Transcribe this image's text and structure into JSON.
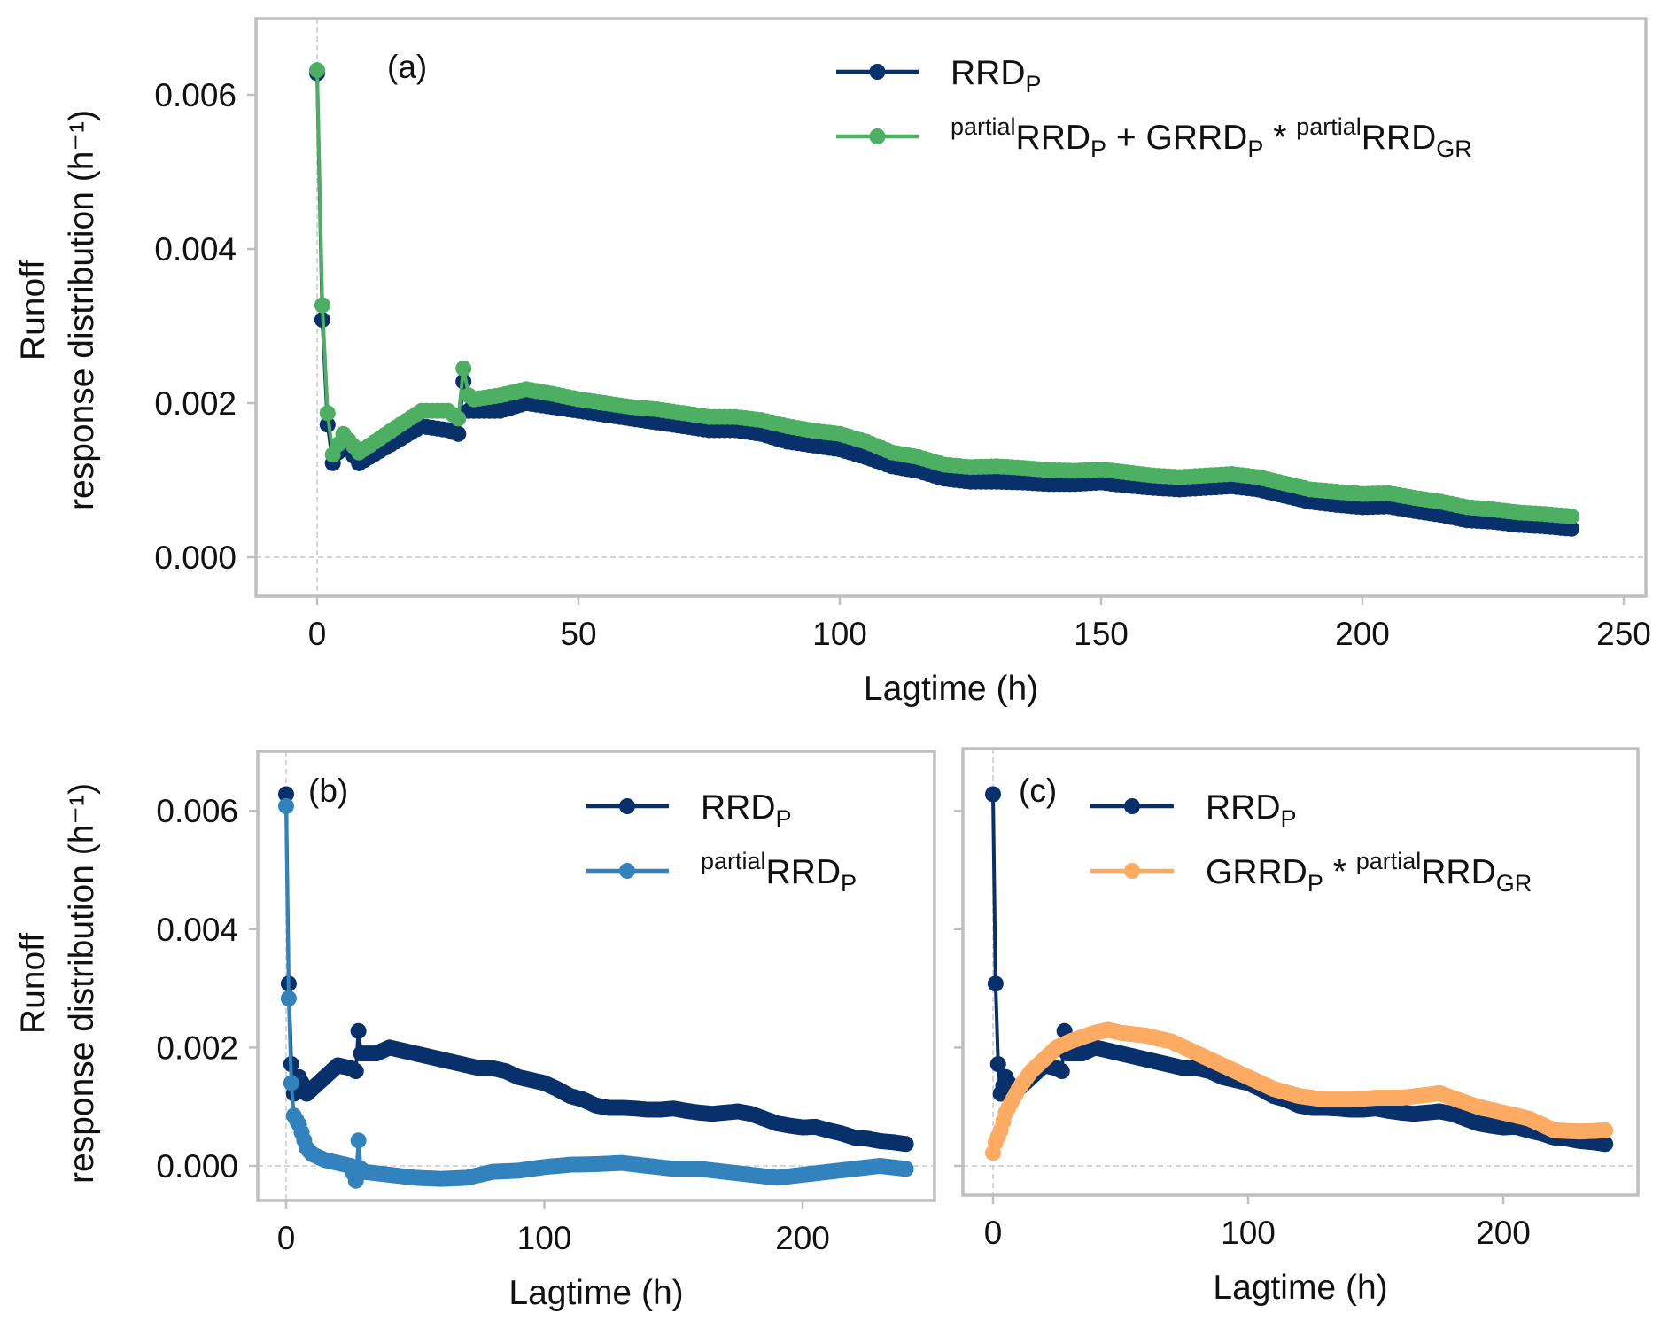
{
  "chart_data": [
    {
      "id": "a",
      "type": "line",
      "panel_label": "(a)",
      "xlabel": "Lagtime (h)",
      "ylabel_lines": [
        "Runoff",
        "response distribution (h⁻¹)"
      ],
      "xlim": [
        -12,
        262
      ],
      "ylim": [
        -0.0005,
        0.007
      ],
      "xticks": [
        0,
        50,
        100,
        150,
        200,
        250
      ],
      "yticks": [
        0.0,
        0.002,
        0.004,
        0.006
      ],
      "ytick_labels": [
        "0.000",
        "0.002",
        "0.004",
        "0.006"
      ],
      "legend_position": "top-right",
      "series": [
        {
          "name": "RRD_P",
          "color": "#08306b",
          "legend": [
            {
              "t": "RRD",
              "s": ""
            },
            {
              "t": "P",
              "s": "sub"
            }
          ],
          "x": [
            0,
            1,
            2,
            3,
            5,
            8,
            10,
            15,
            20,
            25,
            27,
            28,
            29,
            30,
            35,
            40,
            45,
            50,
            55,
            60,
            65,
            70,
            75,
            80,
            85,
            90,
            95,
            100,
            105,
            110,
            115,
            120,
            125,
            130,
            135,
            140,
            145,
            150,
            155,
            160,
            165,
            170,
            175,
            180,
            185,
            190,
            195,
            200,
            205,
            210,
            215,
            220,
            225,
            230,
            235,
            240
          ],
          "y": [
            0.00628,
            0.00308,
            0.00172,
            0.00122,
            0.0015,
            0.00122,
            0.0013,
            0.0015,
            0.0017,
            0.00165,
            0.0016,
            0.00228,
            0.0019,
            0.0019,
            0.0019,
            0.002,
            0.00195,
            0.0019,
            0.00185,
            0.0018,
            0.00175,
            0.0017,
            0.00165,
            0.00165,
            0.0016,
            0.0015,
            0.00145,
            0.0014,
            0.0013,
            0.00118,
            0.00112,
            0.00102,
            0.00098,
            0.00098,
            0.00097,
            0.00095,
            0.00095,
            0.00097,
            0.00093,
            0.0009,
            0.00088,
            0.0009,
            0.00092,
            0.00088,
            0.0008,
            0.00072,
            0.00068,
            0.00065,
            0.00066,
            0.0006,
            0.00055,
            0.00048,
            0.00046,
            0.00042,
            0.0004,
            0.00037
          ]
        },
        {
          "name": "partialRRD_P + GRRD_P * partialRRD_GR",
          "color": "#4caf62",
          "legend": [
            {
              "t": "partial",
              "s": "sup"
            },
            {
              "t": "RRD",
              "s": ""
            },
            {
              "t": "P",
              "s": "sub"
            },
            {
              "t": " + GRRD",
              "s": ""
            },
            {
              "t": "P",
              "s": "sub"
            },
            {
              "t": " * ",
              "s": ""
            },
            {
              "t": "partial",
              "s": "sup"
            },
            {
              "t": "RRD",
              "s": ""
            },
            {
              "t": "GR",
              "s": "sub"
            }
          ],
          "x": [
            0,
            1,
            2,
            3,
            5,
            8,
            10,
            15,
            20,
            25,
            27,
            28,
            29,
            30,
            35,
            40,
            45,
            50,
            55,
            60,
            65,
            70,
            75,
            80,
            85,
            90,
            95,
            100,
            105,
            110,
            115,
            120,
            125,
            130,
            135,
            140,
            145,
            150,
            155,
            160,
            165,
            170,
            175,
            180,
            185,
            190,
            195,
            200,
            205,
            210,
            215,
            220,
            225,
            230,
            235,
            240
          ],
          "y": [
            0.00632,
            0.00327,
            0.00187,
            0.00133,
            0.0016,
            0.00136,
            0.00145,
            0.00168,
            0.0019,
            0.0019,
            0.0018,
            0.00245,
            0.0021,
            0.00205,
            0.0021,
            0.00218,
            0.00212,
            0.00205,
            0.002,
            0.00195,
            0.00192,
            0.00187,
            0.00182,
            0.00182,
            0.00178,
            0.0017,
            0.00164,
            0.0016,
            0.0015,
            0.00136,
            0.0013,
            0.0012,
            0.00117,
            0.00118,
            0.00116,
            0.00113,
            0.00112,
            0.00114,
            0.0011,
            0.00106,
            0.00104,
            0.00106,
            0.00108,
            0.00104,
            0.00096,
            0.00088,
            0.00085,
            0.00082,
            0.00083,
            0.00077,
            0.00072,
            0.00065,
            0.00062,
            0.00058,
            0.00056,
            0.00053
          ]
        }
      ]
    },
    {
      "id": "b",
      "type": "line",
      "panel_label": "(b)",
      "xlabel": "Lagtime (h)",
      "ylabel_lines": [
        "Runoff",
        "response distribution (h⁻¹)"
      ],
      "xlim": [
        -12,
        252
      ],
      "ylim": [
        -0.0006,
        0.007
      ],
      "xticks": [
        0,
        100,
        200
      ],
      "yticks": [
        0.0,
        0.002,
        0.004,
        0.006
      ],
      "ytick_labels": [
        "0.000",
        "0.002",
        "0.004",
        "0.006"
      ],
      "legend_position": "top-right",
      "series": [
        {
          "name": "RRD_P",
          "color": "#08306b",
          "legend": [
            {
              "t": "RRD",
              "s": ""
            },
            {
              "t": "P",
              "s": "sub"
            }
          ],
          "x": [
            0,
            1,
            2,
            3,
            5,
            8,
            10,
            15,
            20,
            25,
            27,
            28,
            29,
            30,
            35,
            40,
            45,
            50,
            55,
            60,
            65,
            70,
            75,
            80,
            85,
            90,
            95,
            100,
            105,
            110,
            115,
            120,
            125,
            130,
            135,
            140,
            145,
            150,
            155,
            160,
            165,
            170,
            175,
            180,
            185,
            190,
            195,
            200,
            205,
            210,
            215,
            220,
            225,
            230,
            235,
            240
          ],
          "y": [
            0.00628,
            0.00308,
            0.00172,
            0.00122,
            0.0015,
            0.00122,
            0.0013,
            0.0015,
            0.0017,
            0.00165,
            0.0016,
            0.00228,
            0.0019,
            0.0019,
            0.0019,
            0.002,
            0.00195,
            0.0019,
            0.00185,
            0.0018,
            0.00175,
            0.0017,
            0.00165,
            0.00165,
            0.0016,
            0.0015,
            0.00145,
            0.0014,
            0.0013,
            0.00118,
            0.00112,
            0.00102,
            0.00098,
            0.00098,
            0.00097,
            0.00095,
            0.00095,
            0.00097,
            0.00093,
            0.0009,
            0.00088,
            0.0009,
            0.00092,
            0.00088,
            0.0008,
            0.00072,
            0.00068,
            0.00065,
            0.00066,
            0.0006,
            0.00055,
            0.00048,
            0.00046,
            0.00042,
            0.0004,
            0.00037
          ]
        },
        {
          "name": "partialRRD_P",
          "color": "#3182bd",
          "legend": [
            {
              "t": "partial",
              "s": "sup"
            },
            {
              "t": "RRD",
              "s": ""
            },
            {
              "t": "P",
              "s": "sub"
            }
          ],
          "x": [
            0,
            1,
            2,
            3,
            5,
            8,
            10,
            15,
            20,
            25,
            27,
            28,
            29,
            30,
            40,
            50,
            60,
            70,
            80,
            90,
            100,
            110,
            120,
            130,
            140,
            150,
            160,
            170,
            180,
            190,
            200,
            210,
            220,
            230,
            240
          ],
          "y": [
            0.00608,
            0.00283,
            0.0014,
            0.00085,
            0.0007,
            0.0003,
            0.0002,
            0.0001,
            5e-05,
            0.0,
            -0.00025,
            0.00043,
            -5e-05,
            -0.0001,
            -0.00015,
            -0.0002,
            -0.00022,
            -0.0002,
            -0.0001,
            -8e-05,
            -2e-05,
            2e-05,
            3e-05,
            5e-05,
            0.0,
            -5e-05,
            -5e-05,
            -0.0001,
            -0.00015,
            -0.0002,
            -0.00015,
            -0.0001,
            -5e-05,
            0.0,
            -5e-05
          ]
        }
      ]
    },
    {
      "id": "c",
      "type": "line",
      "panel_label": "(c)",
      "xlabel": "Lagtime (h)",
      "xlim": [
        -12,
        252
      ],
      "ylim": [
        -0.0006,
        0.007
      ],
      "xticks": [
        0,
        100,
        200
      ],
      "yticks": [
        0.0,
        0.002,
        0.004,
        0.006
      ],
      "legend_position": "top-right",
      "series": [
        {
          "name": "RRD_P",
          "color": "#08306b",
          "legend": [
            {
              "t": "RRD",
              "s": ""
            },
            {
              "t": "P",
              "s": "sub"
            }
          ],
          "x": [
            0,
            1,
            2,
            3,
            5,
            8,
            10,
            15,
            20,
            25,
            27,
            28,
            29,
            30,
            35,
            40,
            45,
            50,
            55,
            60,
            65,
            70,
            75,
            80,
            85,
            90,
            95,
            100,
            105,
            110,
            115,
            120,
            125,
            130,
            135,
            140,
            145,
            150,
            155,
            160,
            165,
            170,
            175,
            180,
            185,
            190,
            195,
            200,
            205,
            210,
            215,
            220,
            225,
            230,
            235,
            240
          ],
          "y": [
            0.00628,
            0.00308,
            0.00172,
            0.00122,
            0.0015,
            0.00122,
            0.0013,
            0.0015,
            0.0017,
            0.00165,
            0.0016,
            0.00228,
            0.0019,
            0.0019,
            0.0019,
            0.002,
            0.00195,
            0.0019,
            0.00185,
            0.0018,
            0.00175,
            0.0017,
            0.00165,
            0.00165,
            0.0016,
            0.0015,
            0.00145,
            0.0014,
            0.0013,
            0.00118,
            0.00112,
            0.00102,
            0.00098,
            0.00098,
            0.00097,
            0.00095,
            0.00095,
            0.00097,
            0.00093,
            0.0009,
            0.00088,
            0.0009,
            0.00092,
            0.00088,
            0.0008,
            0.00072,
            0.00068,
            0.00065,
            0.00066,
            0.0006,
            0.00055,
            0.00048,
            0.00046,
            0.00042,
            0.0004,
            0.00037
          ]
        },
        {
          "name": "GRRD_P * partialRRD_GR",
          "color": "#fdaa63",
          "legend": [
            {
              "t": "GRRD",
              "s": ""
            },
            {
              "t": "P",
              "s": "sub"
            },
            {
              "t": " * ",
              "s": ""
            },
            {
              "t": "partial",
              "s": "sup"
            },
            {
              "t": "RRD",
              "s": ""
            },
            {
              "t": "GR",
              "s": "sub"
            }
          ],
          "x": [
            0,
            1,
            3,
            5,
            10,
            15,
            20,
            25,
            30,
            40,
            45,
            50,
            60,
            70,
            80,
            90,
            100,
            110,
            120,
            130,
            140,
            150,
            160,
            170,
            175,
            180,
            190,
            200,
            210,
            220,
            230,
            240
          ],
          "y": [
            0.00022,
            0.0004,
            0.0006,
            0.0009,
            0.0013,
            0.0016,
            0.0018,
            0.002,
            0.0021,
            0.00225,
            0.0023,
            0.00225,
            0.0022,
            0.0021,
            0.0019,
            0.0017,
            0.0015,
            0.0013,
            0.00118,
            0.00112,
            0.00112,
            0.00115,
            0.00115,
            0.0012,
            0.00123,
            0.00115,
            0.001,
            0.0009,
            0.0008,
            0.0006,
            0.00058,
            0.0006
          ]
        }
      ]
    }
  ]
}
